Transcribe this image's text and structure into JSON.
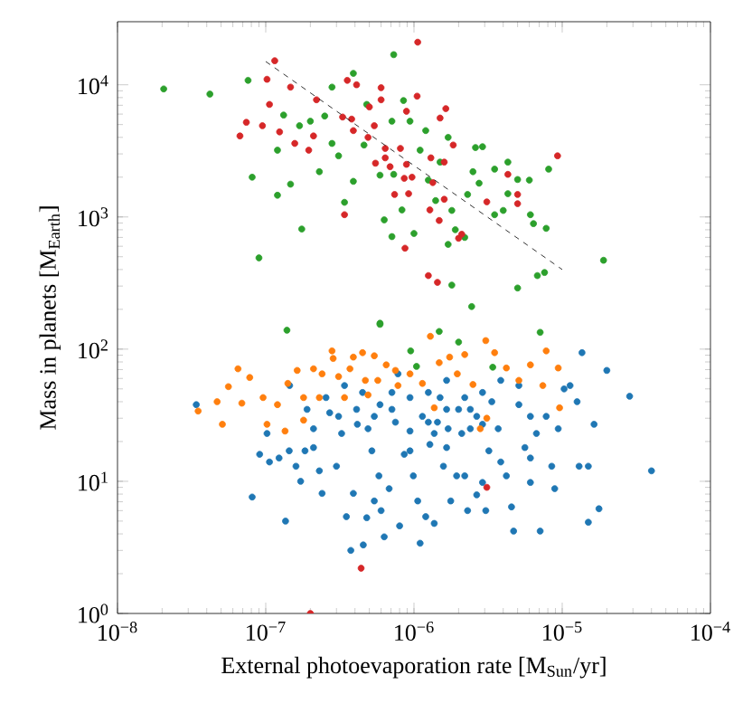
{
  "chart_data": {
    "type": "scatter",
    "xlabel": "External photoevaporation rate [M$_{Sun}$/yr]",
    "ylabel": "Mass in planets [M$_{Earth}$]",
    "log": "xy",
    "marker": "circle",
    "xlim": [
      1e-08,
      0.0001
    ],
    "ylim": [
      1,
      30000
    ],
    "xticks": [
      {
        "value": 1e-08,
        "label": "10$^{−8}$"
      },
      {
        "value": 1e-07,
        "label": "10$^{−7}$"
      },
      {
        "value": 1e-06,
        "label": "10$^{−6}$"
      },
      {
        "value": 1e-05,
        "label": "10$^{−5}$"
      },
      {
        "value": 0.0001,
        "label": "10$^{−4}$"
      }
    ],
    "yticks": [
      {
        "value": 1,
        "label": "10$^{0}$"
      },
      {
        "value": 10,
        "label": "10$^{1}$"
      },
      {
        "value": 100,
        "label": "10$^{2}$"
      },
      {
        "value": 1000,
        "label": "10$^{3}$"
      },
      {
        "value": 10000,
        "label": "10$^{4}$"
      }
    ],
    "series": [
      {
        "color": "#1f77b4",
        "x": [
          3.4e-08,
          8.1e-08,
          9.1e-08,
          1.02e-07,
          1.06e-07,
          1.36e-07,
          1.44e-07,
          1.6e-07,
          1.72e-07,
          2.1e-07,
          2.1e-07,
          2.4e-07,
          2.7e-07,
          3e-07,
          3.25e-07,
          3.5e-07,
          3.75e-07,
          4.15e-07,
          4.55e-07,
          4.8e-07,
          5.2e-07,
          5.8e-07,
          6.3e-07,
          6.8e-07,
          7.5e-07,
          8e-07,
          8.6e-07,
          9.4e-07,
          9.9e-07,
          1.06e-06,
          1.1e-06,
          1.14e-06,
          1.2e-06,
          1.28e-06,
          1.37e-06,
          1.44e-06,
          1.58e-06,
          1.66e-06,
          1.77e-06,
          1.94e-06,
          2.1e-06,
          2.3e-06,
          2.4e-06,
          2.65e-06,
          2.9e-06,
          3.2e-06,
          3.35e-06,
          3.7e-06,
          3.85e-06,
          4.55e-06,
          4.7e-06,
          5.1e-06,
          5.6e-06,
          6.1e-06,
          6.7e-06,
          7.1e-06,
          7.8e-06,
          8.5e-06,
          9.4e-06,
          1.13e-05,
          1.26e-05,
          1.36e-05,
          1.5e-05,
          1.5e-05,
          1.64e-05,
          1.77e-05,
          2e-05,
          2.85e-05,
          4e-05,
          1.45e-07,
          1.9e-07,
          2.55e-07,
          3.4e-07,
          4.5e-07,
          5.9e-07,
          7.8e-07,
          9.4e-07,
          1.25e-06,
          1.66e-06,
          2.2e-06,
          2.9e-06,
          3.85e-06,
          1.66e-06,
          7.1e-07,
          5.4e-07,
          4.1e-07,
          3.1e-07,
          1.37e-06,
          2e-06,
          2.4e-06,
          6.1e-06,
          4.2e-06,
          2.2e-06,
          2.9e-06,
          9.4e-07,
          2.3e-07,
          5.4e-07,
          4.9e-07,
          1.25e-06,
          2.65e-06,
          7.1e-07,
          1.5e-06,
          5.1e-06,
          6.1e-06,
          8.9e-06,
          1.23e-07,
          1.84e-07,
          3.9e-07,
          6e-07,
          1.7e-06,
          3.05e-06,
          1.3e-05,
          1.03e-05
        ],
        "values": [
          38,
          7.6,
          16,
          23,
          14,
          5.0,
          17,
          13,
          10,
          18,
          25,
          8.1,
          33,
          13,
          23,
          5.4,
          3.0,
          27,
          3.3,
          5.3,
          17,
          11,
          3.8,
          8.8,
          28,
          4.6,
          16,
          24,
          11,
          7.1,
          3.4,
          31,
          5.4,
          19,
          4.8,
          28,
          13,
          18,
          7.1,
          11,
          23,
          6.0,
          35,
          7.9,
          27,
          17,
          40,
          25,
          14,
          6.4,
          4.2,
          53,
          18,
          9.8,
          23,
          4.2,
          31,
          13,
          25,
          53,
          40,
          94,
          4.9,
          13,
          27,
          6.2,
          69,
          44,
          12,
          53,
          35,
          43,
          53,
          47,
          38,
          65,
          43,
          47,
          58,
          43,
          47,
          58,
          35,
          35,
          31,
          35,
          31,
          23,
          35,
          25,
          15,
          11,
          11,
          9.8,
          17,
          12,
          7.1,
          25,
          28,
          31,
          47,
          43,
          38,
          31,
          8.8,
          15,
          17,
          8.1,
          6.0,
          25,
          6.0,
          13,
          50
        ]
      },
      {
        "color": "#ff7f0e",
        "x": [
          3.5e-08,
          4.7e-08,
          5.1e-08,
          5.6e-08,
          6.5e-08,
          6.9e-08,
          7.8e-08,
          9.6e-08,
          1.02e-07,
          1.2e-07,
          1.35e-07,
          1.41e-07,
          1.63e-07,
          1.8e-07,
          1.8e-07,
          2.1e-07,
          2.4e-07,
          2.8e-07,
          2.85e-07,
          3.1e-07,
          3.4e-07,
          3.7e-07,
          3.9e-07,
          4.5e-07,
          4.7e-07,
          5.4e-07,
          5.7e-07,
          6.5e-07,
          7.5e-07,
          7.8e-07,
          9.4e-07,
          1.14e-06,
          1.29e-06,
          1.37e-06,
          1.48e-06,
          1.74e-06,
          1.96e-06,
          2.2e-06,
          2.5e-06,
          2.8e-06,
          3.05e-06,
          3.1e-06,
          3.5e-06,
          4.2e-06,
          5.1e-06,
          6.1e-06,
          7.4e-06,
          7.8e-06,
          9.4e-06,
          9.6e-06,
          4.9e-07,
          2.3e-07
        ],
        "values": [
          34,
          40,
          27,
          52,
          71,
          39,
          61,
          43,
          27,
          38,
          24,
          55,
          69,
          29,
          43,
          71,
          65,
          97,
          85,
          62,
          43,
          71,
          87,
          94,
          58,
          89,
          58,
          76,
          69,
          53,
          65,
          55,
          125,
          36,
          79,
          87,
          65,
          91,
          54,
          25,
          116,
          30,
          94,
          72,
          58,
          76,
          53,
          97,
          72,
          36,
          45,
          43
        ]
      },
      {
        "color": "#2ca02c",
        "x": [
          2.05e-08,
          4.2e-08,
          7.6e-08,
          8.1e-08,
          9e-08,
          1.2e-07,
          1.2e-07,
          1.32e-07,
          1.47e-07,
          1.69e-07,
          1.75e-07,
          2e-07,
          2.3e-07,
          2.5e-07,
          2.8e-07,
          2.8e-07,
          3.1e-07,
          3.4e-07,
          3.9e-07,
          3.9e-07,
          4.6e-07,
          4.8e-07,
          5.9e-07,
          6.3e-07,
          7.1e-07,
          7.3e-07,
          7.1e-07,
          7.3e-07,
          8.3e-07,
          8.5e-07,
          9.4e-07,
          1e-06,
          1.1e-06,
          1.2e-06,
          1.25e-06,
          1.4e-06,
          1.5e-06,
          1.7e-06,
          1.8e-06,
          1.8e-06,
          1.9e-06,
          1.7e-06,
          2.2e-06,
          2.3e-06,
          2.5e-06,
          2.6e-06,
          2.9e-06,
          2.75e-06,
          3.5e-06,
          3.5e-06,
          4e-06,
          4.3e-06,
          4.3e-06,
          5e-06,
          5e-06,
          6e-06,
          6.1e-06,
          6.4e-06,
          6.8e-06,
          7.6e-06,
          7.8e-06,
          8.1e-06,
          1.9e-05,
          5.9e-07,
          2.45e-06,
          1.39e-07,
          5.9e-07,
          1.48e-06,
          2e-06,
          7.1e-06,
          9.5e-07,
          1.04e-06,
          3.4e-06
        ],
        "values": [
          9300,
          8500,
          10800,
          2000,
          490,
          3200,
          1460,
          5900,
          1770,
          4900,
          810,
          5300,
          2200,
          5800,
          3600,
          9600,
          2900,
          1290,
          12200,
          1860,
          3500,
          7100,
          2070,
          950,
          710,
          16900,
          5300,
          2100,
          1130,
          7600,
          5300,
          750,
          3200,
          4500,
          1900,
          1330,
          2600,
          4000,
          1120,
          305,
          800,
          620,
          700,
          1480,
          2200,
          3350,
          3400,
          1800,
          2300,
          1040,
          1120,
          2600,
          1500,
          1920,
          290,
          1900,
          1040,
          890,
          360,
          380,
          820,
          2300,
          470,
          154,
          210,
          139,
          157,
          136,
          113,
          134,
          97,
          74,
          73
        ]
      },
      {
        "color": "#d62728",
        "x": [
          1.15e-07,
          1.02e-07,
          1.47e-07,
          1.06e-07,
          7.4e-08,
          9.5e-08,
          6.7e-08,
          1.24e-07,
          1.57e-07,
          1.95e-07,
          2.2e-07,
          2.1e-07,
          3.3e-07,
          3.55e-07,
          4.1e-07,
          3.8e-07,
          3.9e-07,
          5e-07,
          4.9e-07,
          5.4e-07,
          6e-07,
          6e-07,
          6.4e-07,
          6.4e-07,
          6.9e-07,
          5.5e-07,
          8.1e-07,
          8.9e-07,
          8.9e-07,
          8.6e-07,
          9.7e-07,
          9.2e-07,
          1.05e-06,
          1.06e-06,
          1.3e-06,
          1.34e-06,
          1.5e-06,
          1.64e-06,
          1.6e-06,
          1.84e-06,
          1.6e-06,
          1.28e-06,
          1.48e-06,
          2e-06,
          2.1e-06,
          3.1e-06,
          4.3e-06,
          5e-06,
          5e-06,
          9.3e-06,
          7.4e-07,
          3.4e-07,
          1.25e-06,
          1.44e-06,
          8.7e-07,
          3.1e-06,
          4.4e-07,
          2e-07
        ],
        "values": [
          15200,
          11000,
          9600,
          7100,
          5200,
          4900,
          4100,
          4400,
          3600,
          3200,
          7700,
          4100,
          5700,
          10800,
          10000,
          5500,
          4500,
          6800,
          4000,
          4900,
          9500,
          7700,
          3300,
          2800,
          2400,
          2550,
          3300,
          6300,
          2500,
          1960,
          2000,
          1500,
          8200,
          21000,
          2800,
          1820,
          5600,
          6600,
          2600,
          3500,
          1360,
          1130,
          940,
          690,
          740,
          1300,
          2100,
          1480,
          1260,
          2900,
          1480,
          1040,
          360,
          320,
          580,
          9.0,
          2.2,
          1.0
        ]
      },
      {
        "type": "line",
        "color": "#000000",
        "line_style": "dashed",
        "marker": "none",
        "x": [
          1e-07,
          1e-05
        ],
        "values": [
          15000,
          400
        ]
      }
    ]
  }
}
